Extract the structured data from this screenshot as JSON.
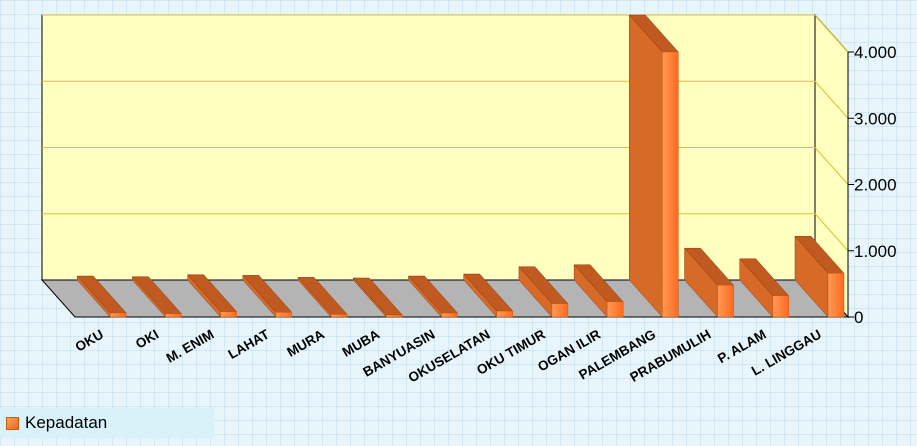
{
  "chart_data": {
    "type": "bar",
    "categories": [
      "OKU",
      "OKI",
      "M. ENIM",
      "LAHAT",
      "MURA",
      "MUBA",
      "BANYUASIN",
      "OKUSELATAN",
      "OKU TIMUR",
      "OGAN ILIR",
      "PALEMBANG",
      "PRABUMULIH",
      "P. ALAM",
      "L. LINGGAU"
    ],
    "series": [
      {
        "name": "Kepadatan",
        "values": [
          60,
          50,
          80,
          70,
          40,
          30,
          60,
          90,
          200,
          230,
          4000,
          480,
          320,
          660
        ]
      }
    ],
    "yticks": [
      "0",
      "1.000",
      "2.000",
      "3.000",
      "4.000"
    ],
    "ylim": [
      0,
      4000
    ],
    "grid": true,
    "legend_position": "bottom-left"
  },
  "legend": {
    "label": "Kepadatan"
  },
  "colors": {
    "plot_back": "#ffffc0",
    "floor": "#b4b4b4",
    "gridline": "#e0c030",
    "bar_front": "#ff8a40",
    "bar_side": "#d86a28",
    "bar_top": "#c05a20"
  }
}
